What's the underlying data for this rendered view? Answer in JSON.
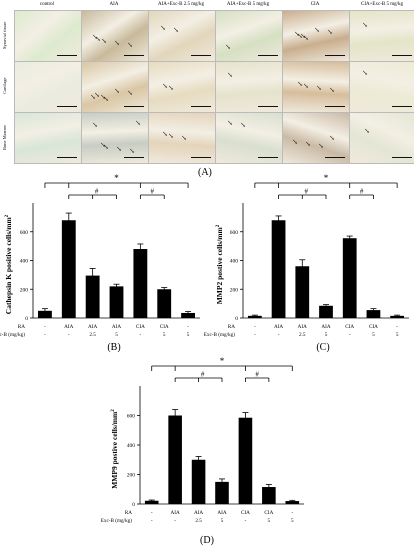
{
  "micrograph_figure": {
    "columns": [
      "control",
      "AIA",
      "AIA+Exc-B 2.5 mg/kg",
      "AIA+Exc-B 5 mg/kg",
      "CIA",
      "CIA+Exc-B 5 mg/kg"
    ],
    "rows": [
      "Synovial tissue",
      "Cartilage",
      "Bone Marrow"
    ],
    "panel_label": "(A)",
    "arrow_counts": [
      [
        0,
        5,
        2,
        1,
        6,
        1
      ],
      [
        0,
        6,
        2,
        1,
        4,
        1
      ],
      [
        0,
        6,
        3,
        2,
        4,
        1
      ]
    ],
    "tile_colors": {
      "Synovial tissue": [
        "#ddeacf",
        "#c8b99a",
        "#e2d6bb",
        "#d5e0c2",
        "#c9ae8e",
        "#e3e5c8"
      ],
      "Cartilage": [
        "#eaece0",
        "#d9c6a4",
        "#e7dcc1",
        "#e5e3cc",
        "#d6bd9b",
        "#ecebd5"
      ],
      "Bone Marrow": [
        "#d8e6d8",
        "#c7cdc3",
        "#e4d4bb",
        "#d9dfcf",
        "#cabaa5",
        "#e4e6d5"
      ]
    }
  },
  "chart_data": [
    {
      "type": "bar",
      "panel_label": "(B)",
      "ylabel": "Cathepsin K positive cells/mm",
      "ylabel_sup": "2",
      "ylim": [
        0,
        800
      ],
      "yticks": [
        "0",
        "200",
        "400",
        "600"
      ],
      "ytick_values": [
        0,
        200,
        400,
        600
      ],
      "values": [
        50,
        680,
        295,
        220,
        480,
        200,
        35
      ],
      "errors": [
        15,
        50,
        50,
        15,
        35,
        12,
        10
      ],
      "row_titles": [
        "RA",
        "Exc-B (mg/kg)"
      ],
      "ra_row": [
        "-",
        "AIA",
        "AIA",
        "AIA",
        "CIA",
        "CIA",
        "-"
      ],
      "excb_row": [
        "-",
        "-",
        "2.5",
        "5",
        "-",
        "5",
        "5"
      ],
      "significance": {
        "star": "*",
        "hash": "#"
      }
    },
    {
      "type": "bar",
      "panel_label": "(C)",
      "ylabel": "MMP2 postive cells/mm",
      "ylabel_sup": "2",
      "ylim": [
        0,
        800
      ],
      "yticks": [
        "0",
        "200",
        "400",
        "600"
      ],
      "ytick_values": [
        0,
        200,
        400,
        600
      ],
      "values": [
        15,
        680,
        360,
        85,
        555,
        55,
        15
      ],
      "errors": [
        5,
        30,
        45,
        8,
        15,
        10,
        5
      ],
      "row_titles": [
        "RA",
        "Exc-B (mg/kg)"
      ],
      "ra_row": [
        "-",
        "AIA",
        "AIA",
        "AIA",
        "CIA",
        "CIA",
        "-"
      ],
      "excb_row": [
        "-",
        "-",
        "2.5",
        "5",
        "-",
        "5",
        "5"
      ],
      "significance": {
        "star": "*",
        "hash": "#"
      }
    },
    {
      "type": "bar",
      "panel_label": "(D)",
      "ylabel": "MMP9 postive cells/mm",
      "ylabel_sup": "2",
      "ylim": [
        0,
        800
      ],
      "yticks": [
        "0",
        "200",
        "400",
        "600"
      ],
      "ytick_values": [
        0,
        200,
        400,
        600
      ],
      "values": [
        22,
        600,
        300,
        150,
        585,
        115,
        20
      ],
      "errors": [
        5,
        40,
        22,
        20,
        35,
        18,
        5
      ],
      "row_titles": [
        "RA",
        "Exc-B (mg/kg)"
      ],
      "ra_row": [
        "-",
        "AIA",
        "AIA",
        "AIA",
        "CIA",
        "CIA",
        "-"
      ],
      "excb_row": [
        "-",
        "-",
        "2.5",
        "5",
        "-",
        "5",
        "5"
      ],
      "significance": {
        "star": "*",
        "hash": "#"
      }
    }
  ]
}
